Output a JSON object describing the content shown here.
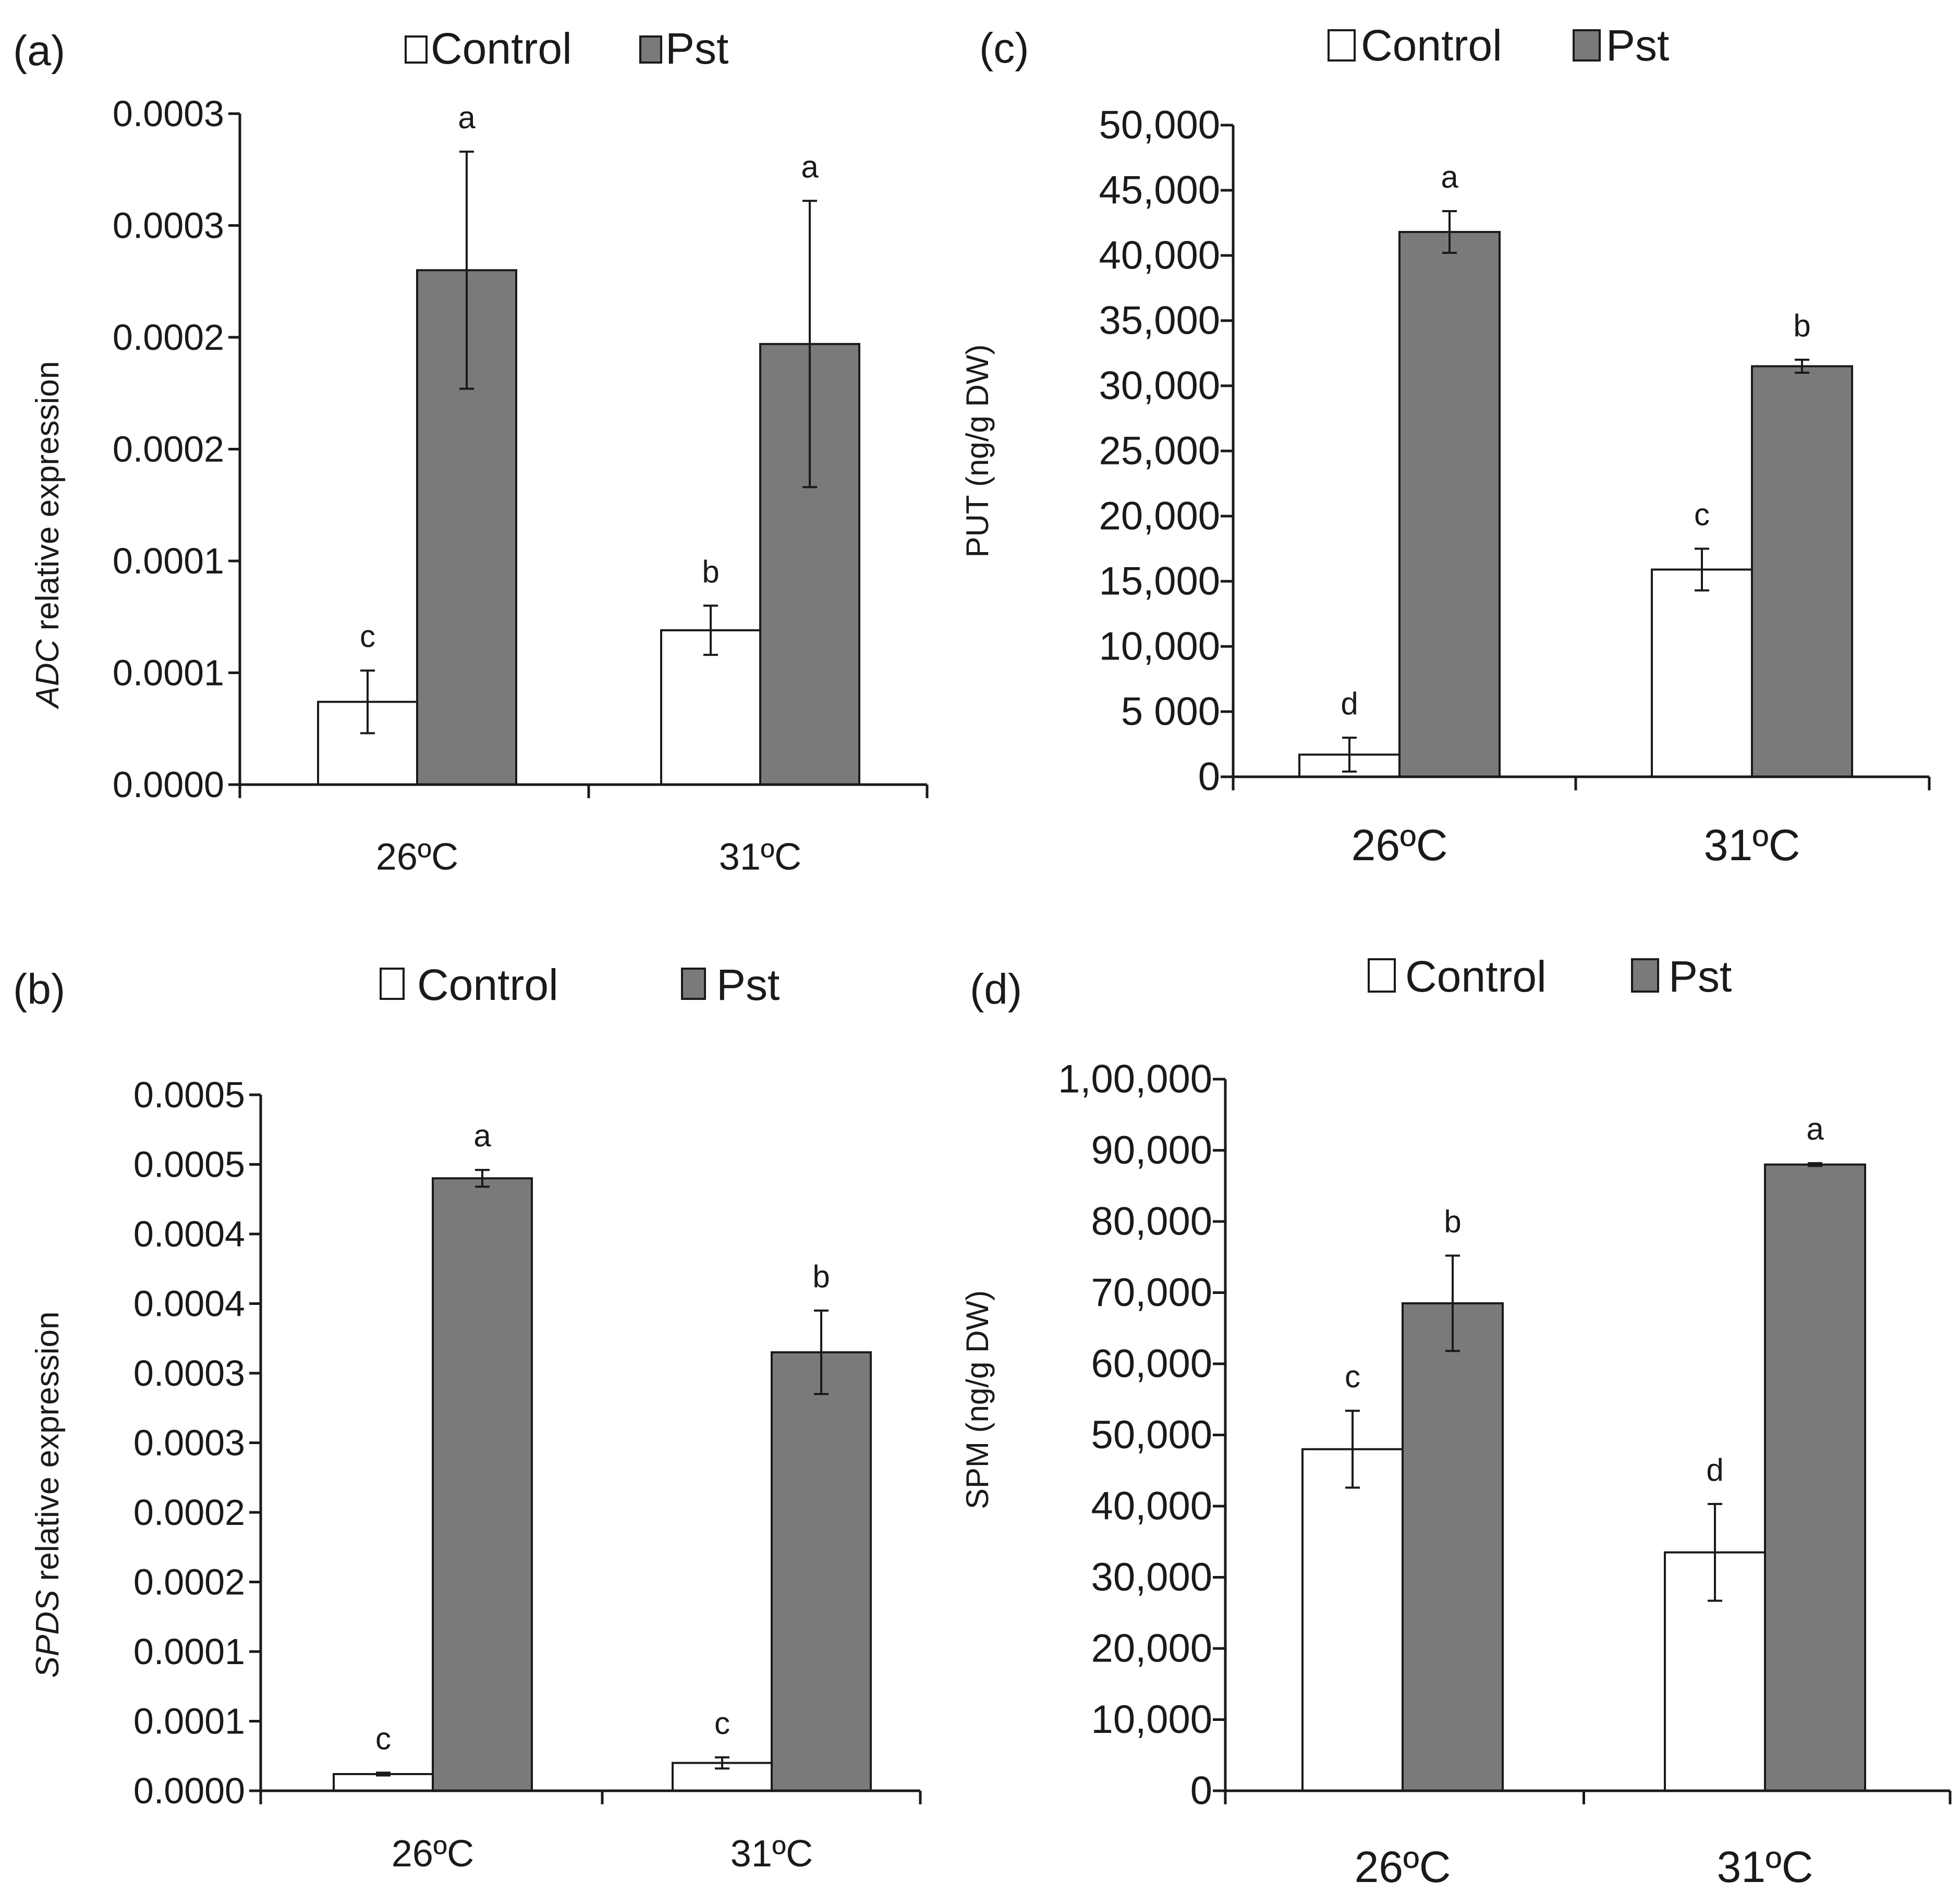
{
  "colors": {
    "control": "#ffffff",
    "pst": "#7a7a7a",
    "outline": "#1a1a1a"
  },
  "chart_data": [
    {
      "id": "a",
      "type": "bar",
      "panel_label": "(a)",
      "title": "",
      "ylabel_italic": "ADC",
      "ylabel_rest": " relative expression",
      "xlabel": "",
      "categories": [
        "26ºC",
        "31ºC"
      ],
      "legend": [
        "Control",
        "Pst"
      ],
      "ylim": [
        0,
        0.0003
      ],
      "yticks": [
        0,
        5e-05,
        0.0001,
        0.00015,
        0.0002,
        0.00025,
        0.0003
      ],
      "ytick_labels": [
        "0.0000",
        "0.0001",
        "0.0001",
        "0.0002",
        "0.0002",
        "0.0003",
        "0.0003"
      ],
      "series": [
        {
          "name": "Control",
          "values": [
            3.7e-05,
            6.9e-05
          ],
          "errors": [
            1.4e-05,
            1.1e-05
          ],
          "labels": [
            "c",
            "b"
          ]
        },
        {
          "name": "Pst",
          "values": [
            0.00023,
            0.000197
          ],
          "errors": [
            5.3e-05,
            6.4e-05
          ],
          "labels": [
            "a",
            "a"
          ]
        }
      ]
    },
    {
      "id": "b",
      "type": "bar",
      "panel_label": "(b)",
      "title": "",
      "ylabel_italic": "SPDS",
      "ylabel_rest": " relative expression",
      "xlabel": "",
      "categories": [
        "26ºC",
        "31ºC"
      ],
      "legend": [
        "Control",
        "Pst"
      ],
      "ylim": [
        0,
        0.0005
      ],
      "yticks": [
        0,
        5e-05,
        0.0001,
        0.00015,
        0.0002,
        0.00025,
        0.0003,
        0.00035,
        0.0004,
        0.00045,
        0.0005
      ],
      "ytick_labels": [
        "0.0000",
        "0.0001",
        "0.0001",
        "0.0002",
        "0.0002",
        "0.0003",
        "0.0003",
        "0.0004",
        "0.0004",
        "0.0005",
        "0.0005"
      ],
      "series": [
        {
          "name": "Control",
          "values": [
            1.2e-05,
            2e-05
          ],
          "errors": [
            1e-06,
            4e-06
          ],
          "labels": [
            "c",
            "c"
          ]
        },
        {
          "name": "Pst",
          "values": [
            0.00044,
            0.000315
          ],
          "errors": [
            6e-06,
            3e-05
          ],
          "labels": [
            "a",
            "b"
          ]
        }
      ]
    },
    {
      "id": "c",
      "type": "bar",
      "panel_label": "(c)",
      "title": "",
      "ylabel": "PUT (ng/g DW)",
      "xlabel": "",
      "categories": [
        "26ºC",
        "31ºC"
      ],
      "legend": [
        "Control",
        "Pst"
      ],
      "ylim": [
        0,
        50000
      ],
      "yticks": [
        0,
        5000,
        10000,
        15000,
        20000,
        25000,
        30000,
        35000,
        40000,
        45000,
        50000
      ],
      "ytick_labels": [
        "0",
        "5 000",
        "10,000",
        "15,000",
        "20,000",
        "25,000",
        "30,000",
        "35,000",
        "40,000",
        "45,000",
        "50,000"
      ],
      "series": [
        {
          "name": "Control",
          "values": [
            1700,
            15900
          ],
          "errors": [
            1300,
            1600
          ],
          "labels": [
            "d",
            "c"
          ]
        },
        {
          "name": "Pst",
          "values": [
            41800,
            31500
          ],
          "errors": [
            1600,
            500
          ],
          "labels": [
            "a",
            "b"
          ]
        }
      ]
    },
    {
      "id": "d",
      "type": "bar",
      "panel_label": "(d)",
      "title": "",
      "ylabel": "SPM (ng/g DW)",
      "xlabel": "",
      "categories": [
        "26ºC",
        "31ºC"
      ],
      "legend": [
        "Control",
        "Pst"
      ],
      "ylim": [
        0,
        100000
      ],
      "yticks": [
        0,
        10000,
        20000,
        30000,
        40000,
        50000,
        60000,
        70000,
        80000,
        90000,
        100000
      ],
      "ytick_labels": [
        "0",
        "10,000",
        "20,000",
        "30,000",
        "40,000",
        "50,000",
        "60,000",
        "70,000",
        "80,000",
        "90,000",
        "1,00,000"
      ],
      "series": [
        {
          "name": "Control",
          "values": [
            48000,
            33500
          ],
          "errors": [
            5400,
            6800
          ],
          "labels": [
            "c",
            "d"
          ]
        },
        {
          "name": "Pst",
          "values": [
            68500,
            88000
          ],
          "errors": [
            6700,
            200
          ],
          "labels": [
            "b",
            "a"
          ]
        }
      ]
    }
  ]
}
